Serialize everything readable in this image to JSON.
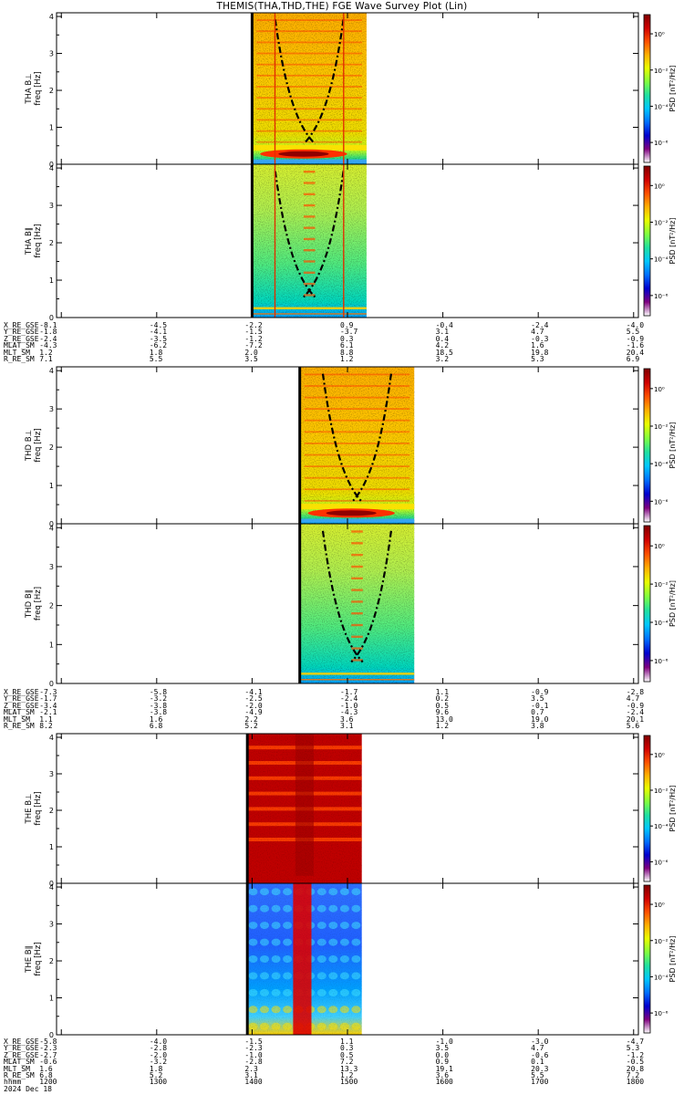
{
  "title": "THEMIS(THA,THD,THE) FGE Wave Survey Plot (Lin)",
  "freq_ticks": [
    "0",
    "1",
    "2",
    "3",
    "4"
  ],
  "colorbar": {
    "unit": "PSD [nT²/Hz]",
    "ticks": [
      "10⁰",
      "10⁻²",
      "10⁻⁴",
      "10⁻⁶"
    ],
    "colors": [
      "#ffffff",
      "#7f007f",
      "#0000d0",
      "#0070ff",
      "#00c8ff",
      "#20e0a0",
      "#80ff40",
      "#e8ff00",
      "#ffb000",
      "#ff5000",
      "#d00000",
      "#800000"
    ]
  },
  "chart_data": [
    {
      "type": "heatmap",
      "panel": "THA B⊥",
      "ylabel": "THA B⊥",
      "yunit": "freq [Hz]",
      "ylim": [
        0,
        4.1
      ],
      "data_start_min": 1400,
      "data_end_min": 1520,
      "style": "noisy-warm"
    },
    {
      "type": "heatmap",
      "panel": "THA B∥",
      "ylabel": "THA B∥",
      "yunit": "freq [Hz]",
      "ylim": [
        0,
        4.1
      ],
      "data_start_min": 1400,
      "data_end_min": 1520,
      "style": "noisy-cool"
    },
    {
      "type": "heatmap",
      "panel": "THD B⊥",
      "ylabel": "THD B⊥",
      "yunit": "freq [Hz]",
      "ylim": [
        0,
        4.1
      ],
      "data_start_min": 1450,
      "data_end_min": 1570,
      "style": "noisy-warm"
    },
    {
      "type": "heatmap",
      "panel": "THD B∥",
      "ylabel": "THD B∥",
      "yunit": "freq [Hz]",
      "ylim": [
        0,
        4.1
      ],
      "data_start_min": 1450,
      "data_end_min": 1570,
      "style": "noisy-cool"
    },
    {
      "type": "heatmap",
      "panel": "THE B⊥",
      "ylabel": "THE B⊥",
      "yunit": "freq [Hz]",
      "ylim": [
        0,
        4.1
      ],
      "data_start_min": 1395,
      "data_end_min": 1515,
      "style": "saturated"
    },
    {
      "type": "heatmap",
      "panel": "THE B∥",
      "ylabel": "THE B∥",
      "yunit": "freq [Hz]",
      "ylim": [
        0,
        4.1
      ],
      "data_start_min": 1395,
      "data_end_min": 1515,
      "style": "spotty"
    }
  ],
  "ephemeris": [
    {
      "labels": [
        "X_RE_GSE",
        "Y_RE_GSE",
        "Z_RE_GSE",
        "MLAT_SM",
        "MLT_SM",
        "R_RE_SM"
      ],
      "columns": [
        [
          "-8.1",
          "-1.8",
          "-2.4",
          "-4.3",
          "1.2",
          "7.1"
        ],
        [
          "-4.5",
          "-4.1",
          "-3.5",
          "-6.2",
          "1.8",
          "5.5"
        ],
        [
          "-2.2",
          "-1.5",
          "-1.2",
          "-7.2",
          "2.0",
          "3.5"
        ],
        [
          "0.9",
          "-3.7",
          "0.3",
          "6.1",
          "8.8",
          "1.2"
        ],
        [
          "-0.4",
          "3.1",
          "0.4",
          "4.2",
          "18.5",
          "3.2"
        ],
        [
          "-2.4",
          "4.7",
          "-0.3",
          "1.6",
          "19.8",
          "5.3"
        ],
        [
          "-4.0",
          "5.5",
          "-0.9",
          "-1.6",
          "20.4",
          "6.9"
        ]
      ]
    },
    {
      "labels": [
        "X_RE_GSE",
        "Y_RE_GSE",
        "Z_RE_GSE",
        "MLAT_SM",
        "MLT_SM",
        "R_RE_SM"
      ],
      "columns": [
        [
          "-7.3",
          "-1.7",
          "-3.4",
          "-2.1",
          "1.1",
          "8.2"
        ],
        [
          "-5.8",
          "-3.2",
          "-3.8",
          "-3.8",
          "1.6",
          "6.8"
        ],
        [
          "-4.1",
          "-2.5",
          "-2.0",
          "-4.9",
          "2.2",
          "5.2"
        ],
        [
          "-1.7",
          "-2.4",
          "-1.0",
          "-4.3",
          "3.6",
          "3.1"
        ],
        [
          "1.1",
          "0.2",
          "0.5",
          "9.6",
          "13.0",
          "1.2"
        ],
        [
          "-0.9",
          "3.5",
          "-0.1",
          "0.7",
          "19.0",
          "3.8"
        ],
        [
          "-2.8",
          "4.7",
          "-0.9",
          "-2.4",
          "20.1",
          "5.6"
        ]
      ]
    },
    {
      "labels": [
        "X_RE_GSE",
        "Y_RE_GSE",
        "Z_RE_GSE",
        "MLAT_SM",
        "MLT_SM",
        "R_RE_SM",
        "hhmm",
        "2024 Dec 18"
      ],
      "columns": [
        [
          "-5.8",
          "-2.3",
          "-2.7",
          "-0.6",
          "1.6",
          "6.8",
          "1200",
          ""
        ],
        [
          "-4.0",
          "-2.8",
          "-2.0",
          "-3.2",
          "1.8",
          "5.2",
          "1300",
          ""
        ],
        [
          "-1.5",
          "-2.3",
          "-1.0",
          "-2.8",
          "2.3",
          "3.1",
          "1400",
          ""
        ],
        [
          "1.1",
          "0.3",
          "0.5",
          "7.2",
          "13.3",
          "1.2",
          "1500",
          ""
        ],
        [
          "-1.0",
          "3.5",
          "0.0",
          "0.9",
          "19.1",
          "3.6",
          "1600",
          ""
        ],
        [
          "-3.0",
          "4.7",
          "-0.6",
          "0.1",
          "20.3",
          "5.5",
          "1700",
          ""
        ],
        [
          "-4.7",
          "5.3",
          "-1.2",
          "-0.5",
          "20.8",
          "7.2",
          "1800",
          ""
        ]
      ]
    }
  ]
}
